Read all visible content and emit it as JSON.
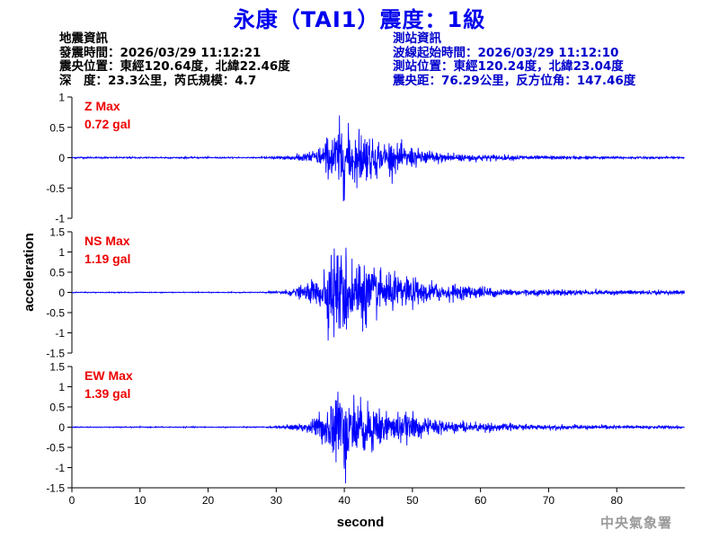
{
  "header": {
    "title": "永康（TAI1）震度：1級"
  },
  "event_info": {
    "heading": "地震資訊",
    "origin_time": "發震時間：2026/03/29 11:12:21",
    "epicenter": "震央位置：東經120.64度，北緯22.46度",
    "depth_magnitude": "深　度：23.3公里，芮氏規模：4.7"
  },
  "station_info": {
    "heading": "測站資訊",
    "wave_start": "波線起始時間：2026/03/29 11:12:10",
    "location": "測站位置：東經120.24度，北緯23.04度",
    "distance": "震央距：76.29公里，反方位角：147.46度"
  },
  "footer": {
    "agency": "中央氣象署"
  },
  "colors": {
    "title": "#0000ee",
    "trace": "#0000ff",
    "max_label": "#ee0000",
    "station_text": "#0000cc"
  },
  "chart_data": [
    {
      "type": "line",
      "series_label": "Z Max",
      "max_value": "0.72 gal",
      "peak": 0.72,
      "ylim": [
        -1,
        1
      ],
      "yticks": [
        -1,
        -0.5,
        0,
        0.5,
        1
      ],
      "ytick_labels": [
        "-1",
        "-0.5",
        "0",
        "0.5",
        "1"
      ],
      "noise": 0.012,
      "onset": 25,
      "peak_time": 39.5,
      "coda_level": 0.06
    },
    {
      "type": "line",
      "series_label": "NS Max",
      "max_value": "1.19 gal",
      "peak": 1.19,
      "ylim": [
        -1.5,
        1.5
      ],
      "yticks": [
        -1.5,
        -1,
        -0.5,
        0,
        0.5,
        1,
        1.5
      ],
      "ytick_labels": [
        "-1.5",
        "-1",
        "-0.5",
        "0",
        "0.5",
        "1",
        "1.5"
      ],
      "noise": 0.01,
      "onset": 27,
      "peak_time": 38.5,
      "coda_level": 0.1
    },
    {
      "type": "line",
      "series_label": "EW Max",
      "max_value": "1.39 gal",
      "peak": 1.39,
      "ylim": [
        -1.5,
        1.5
      ],
      "yticks": [
        -1.5,
        -1,
        -0.5,
        0,
        0.5,
        1,
        1.5
      ],
      "ytick_labels": [
        "-1.5",
        "-1",
        "-0.5",
        "0",
        "0.5",
        "1",
        "1.5"
      ],
      "noise": 0.012,
      "onset": 27,
      "peak_time": 39,
      "coda_level": 0.08
    }
  ],
  "axes": {
    "xlim": [
      0,
      90
    ],
    "xticks": [
      0,
      10,
      20,
      30,
      40,
      50,
      60,
      70,
      80
    ],
    "xtick_labels": [
      "0",
      "10",
      "20",
      "30",
      "40",
      "50",
      "60",
      "70",
      "80"
    ],
    "xlabel": "second",
    "ylabel": "acceleration"
  }
}
